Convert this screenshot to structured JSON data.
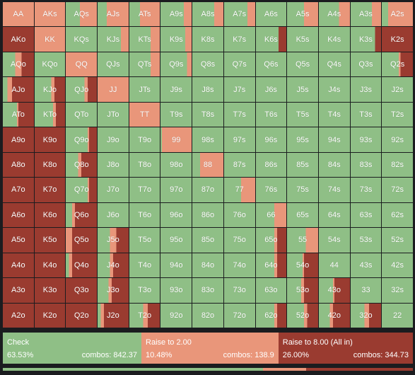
{
  "colors": {
    "check": "#8fbf86",
    "raise_small": "#e9967a",
    "raise_allin": "#9a3b30"
  },
  "grid": {
    "rows": [
      [
        "AA",
        "AKs",
        "AQs",
        "AJs",
        "ATs",
        "A9s",
        "A8s",
        "A7s",
        "A6s",
        "A5s",
        "A4s",
        "A3s",
        "A2s"
      ],
      [
        "AKo",
        "KK",
        "KQs",
        "KJs",
        "KTs",
        "K9s",
        "K8s",
        "K7s",
        "K6s",
        "K5s",
        "K4s",
        "K3s",
        "K2s"
      ],
      [
        "AQo",
        "KQo",
        "QQ",
        "QJs",
        "QTs",
        "Q9s",
        "Q8s",
        "Q7s",
        "Q6s",
        "Q5s",
        "Q4s",
        "Q3s",
        "Q2s"
      ],
      [
        "AJo",
        "KJo",
        "QJo",
        "JJ",
        "JTs",
        "J9s",
        "J8s",
        "J7s",
        "J6s",
        "J5s",
        "J4s",
        "J3s",
        "J2s"
      ],
      [
        "ATo",
        "KTo",
        "QTo",
        "JTo",
        "TT",
        "T9s",
        "T8s",
        "T7s",
        "T6s",
        "T5s",
        "T4s",
        "T3s",
        "T2s"
      ],
      [
        "A9o",
        "K9o",
        "Q9o",
        "J9o",
        "T9o",
        "99",
        "98s",
        "97s",
        "96s",
        "95s",
        "94s",
        "93s",
        "92s"
      ],
      [
        "A8o",
        "K8o",
        "Q8o",
        "J8o",
        "T8o",
        "98o",
        "88",
        "87s",
        "86s",
        "85s",
        "84s",
        "83s",
        "82s"
      ],
      [
        "A7o",
        "K7o",
        "Q7o",
        "J7o",
        "T7o",
        "97o",
        "87o",
        "77",
        "76s",
        "75s",
        "74s",
        "73s",
        "72s"
      ],
      [
        "A6o",
        "K6o",
        "Q6o",
        "J6o",
        "T6o",
        "96o",
        "86o",
        "76o",
        "66",
        "65s",
        "64s",
        "63s",
        "62s"
      ],
      [
        "A5o",
        "K5o",
        "Q5o",
        "J5o",
        "T5o",
        "95o",
        "85o",
        "75o",
        "65o",
        "55",
        "54s",
        "53s",
        "52s"
      ],
      [
        "A4o",
        "K4o",
        "Q4o",
        "J4o",
        "T4o",
        "94o",
        "84o",
        "74o",
        "64o",
        "54o",
        "44",
        "43s",
        "42s"
      ],
      [
        "A3o",
        "K3o",
        "Q3o",
        "J3o",
        "T3o",
        "93o",
        "83o",
        "73o",
        "63o",
        "53o",
        "43o",
        "33",
        "32s"
      ],
      [
        "A2o",
        "K2o",
        "Q2o",
        "J2o",
        "T2o",
        "92o",
        "82o",
        "72o",
        "62o",
        "52o",
        "42o",
        "32o",
        "22"
      ]
    ],
    "freqs": [
      [
        [
          0,
          100,
          0
        ],
        [
          0,
          100,
          0
        ],
        [
          45,
          55,
          0
        ],
        [
          30,
          70,
          0
        ],
        [
          35,
          65,
          0
        ],
        [
          75,
          25,
          0
        ],
        [
          70,
          30,
          0
        ],
        [
          75,
          25,
          0
        ],
        [
          100,
          0,
          0
        ],
        [
          55,
          45,
          0
        ],
        [
          65,
          35,
          0
        ],
        [
          70,
          30,
          0
        ],
        [
          20,
          80,
          0
        ]
      ],
      [
        [
          0,
          0,
          100
        ],
        [
          0,
          100,
          0
        ],
        [
          100,
          0,
          0
        ],
        [
          75,
          25,
          0
        ],
        [
          70,
          30,
          0
        ],
        [
          80,
          20,
          0
        ],
        [
          100,
          0,
          0
        ],
        [
          100,
          0,
          0
        ],
        [
          75,
          0,
          25
        ],
        [
          100,
          0,
          0
        ],
        [
          100,
          0,
          0
        ],
        [
          80,
          0,
          20
        ],
        [
          0,
          0,
          100
        ]
      ],
      [
        [
          40,
          20,
          40
        ],
        [
          100,
          0,
          0
        ],
        [
          0,
          100,
          0
        ],
        [
          100,
          0,
          0
        ],
        [
          70,
          30,
          0
        ],
        [
          85,
          15,
          0
        ],
        [
          100,
          0,
          0
        ],
        [
          100,
          0,
          0
        ],
        [
          100,
          0,
          0
        ],
        [
          100,
          0,
          0
        ],
        [
          100,
          0,
          0
        ],
        [
          100,
          0,
          0
        ],
        [
          55,
          5,
          40
        ]
      ],
      [
        [
          15,
          15,
          70
        ],
        [
          55,
          10,
          35
        ],
        [
          60,
          10,
          30
        ],
        [
          0,
          100,
          0
        ],
        [
          100,
          0,
          0
        ],
        [
          100,
          0,
          0
        ],
        [
          100,
          0,
          0
        ],
        [
          100,
          0,
          0
        ],
        [
          100,
          0,
          0
        ],
        [
          100,
          0,
          0
        ],
        [
          100,
          0,
          0
        ],
        [
          100,
          0,
          0
        ],
        [
          100,
          0,
          0
        ]
      ],
      [
        [
          45,
          5,
          50
        ],
        [
          60,
          10,
          30
        ],
        [
          100,
          0,
          0
        ],
        [
          100,
          0,
          0
        ],
        [
          0,
          100,
          0
        ],
        [
          100,
          0,
          0
        ],
        [
          100,
          0,
          0
        ],
        [
          100,
          0,
          0
        ],
        [
          100,
          0,
          0
        ],
        [
          100,
          0,
          0
        ],
        [
          100,
          0,
          0
        ],
        [
          100,
          0,
          0
        ],
        [
          100,
          0,
          0
        ]
      ],
      [
        [
          0,
          0,
          100
        ],
        [
          0,
          0,
          100
        ],
        [
          70,
          5,
          25
        ],
        [
          100,
          0,
          0
        ],
        [
          100,
          0,
          0
        ],
        [
          5,
          95,
          0
        ],
        [
          100,
          0,
          0
        ],
        [
          100,
          0,
          0
        ],
        [
          100,
          0,
          0
        ],
        [
          100,
          0,
          0
        ],
        [
          100,
          0,
          0
        ],
        [
          100,
          0,
          0
        ],
        [
          100,
          0,
          0
        ]
      ],
      [
        [
          0,
          0,
          100
        ],
        [
          0,
          0,
          100
        ],
        [
          40,
          10,
          50
        ],
        [
          100,
          0,
          0
        ],
        [
          100,
          0,
          0
        ],
        [
          100,
          0,
          0
        ],
        [
          25,
          75,
          0
        ],
        [
          100,
          0,
          0
        ],
        [
          100,
          0,
          0
        ],
        [
          100,
          0,
          0
        ],
        [
          100,
          0,
          0
        ],
        [
          100,
          0,
          0
        ],
        [
          100,
          0,
          0
        ]
      ],
      [
        [
          0,
          0,
          100
        ],
        [
          0,
          0,
          100
        ],
        [
          70,
          5,
          25
        ],
        [
          100,
          0,
          0
        ],
        [
          100,
          0,
          0
        ],
        [
          100,
          0,
          0
        ],
        [
          100,
          0,
          0
        ],
        [
          55,
          45,
          0
        ],
        [
          100,
          0,
          0
        ],
        [
          100,
          0,
          0
        ],
        [
          100,
          0,
          0
        ],
        [
          100,
          0,
          0
        ],
        [
          100,
          0,
          0
        ]
      ],
      [
        [
          0,
          0,
          100
        ],
        [
          0,
          0,
          100
        ],
        [
          20,
          10,
          70
        ],
        [
          100,
          0,
          0
        ],
        [
          100,
          0,
          0
        ],
        [
          100,
          0,
          0
        ],
        [
          100,
          0,
          0
        ],
        [
          100,
          0,
          0
        ],
        [
          60,
          40,
          0
        ],
        [
          100,
          0,
          0
        ],
        [
          100,
          0,
          0
        ],
        [
          100,
          0,
          0
        ],
        [
          100,
          0,
          0
        ]
      ],
      [
        [
          0,
          0,
          100
        ],
        [
          0,
          0,
          100
        ],
        [
          0,
          20,
          80
        ],
        [
          40,
          20,
          40
        ],
        [
          100,
          0,
          0
        ],
        [
          100,
          0,
          0
        ],
        [
          100,
          0,
          0
        ],
        [
          100,
          0,
          0
        ],
        [
          60,
          10,
          30
        ],
        [
          60,
          40,
          0
        ],
        [
          100,
          0,
          0
        ],
        [
          100,
          0,
          0
        ],
        [
          100,
          0,
          0
        ]
      ],
      [
        [
          0,
          0,
          100
        ],
        [
          0,
          0,
          100
        ],
        [
          10,
          10,
          80
        ],
        [
          40,
          10,
          50
        ],
        [
          100,
          0,
          0
        ],
        [
          100,
          0,
          0
        ],
        [
          100,
          0,
          0
        ],
        [
          100,
          0,
          0
        ],
        [
          60,
          10,
          30
        ],
        [
          50,
          5,
          45
        ],
        [
          100,
          0,
          0
        ],
        [
          100,
          0,
          0
        ],
        [
          100,
          0,
          0
        ]
      ],
      [
        [
          0,
          0,
          100
        ],
        [
          0,
          0,
          100
        ],
        [
          0,
          0,
          100
        ],
        [
          35,
          10,
          55
        ],
        [
          100,
          0,
          0
        ],
        [
          100,
          0,
          0
        ],
        [
          100,
          0,
          0
        ],
        [
          100,
          0,
          0
        ],
        [
          100,
          0,
          0
        ],
        [
          45,
          10,
          45
        ],
        [
          45,
          5,
          50
        ],
        [
          100,
          0,
          0
        ],
        [
          100,
          0,
          0
        ]
      ],
      [
        [
          0,
          0,
          100
        ],
        [
          0,
          0,
          100
        ],
        [
          0,
          0,
          100
        ],
        [
          10,
          10,
          80
        ],
        [
          45,
          15,
          40
        ],
        [
          100,
          0,
          0
        ],
        [
          100,
          0,
          0
        ],
        [
          100,
          0,
          0
        ],
        [
          60,
          10,
          30
        ],
        [
          55,
          10,
          35
        ],
        [
          35,
          10,
          55
        ],
        [
          45,
          15,
          40
        ],
        [
          100,
          0,
          0
        ]
      ]
    ]
  },
  "actions": [
    {
      "name": "Check",
      "pct": "63.53%",
      "combos": "combos: 842.37",
      "color": "#8fbf86",
      "width_pct": 33.8
    },
    {
      "name": "Raise to 2.00",
      "pct": "10.48%",
      "combos": "combos: 138.9",
      "color": "#e9967a",
      "width_pct": 33.4
    },
    {
      "name": "Raise to 8.00 (All in)",
      "pct": "26.00%",
      "combos": "combos: 344.73",
      "color": "#9a3b30",
      "width_pct": 32.8
    }
  ],
  "freq_bar": [
    {
      "color": "#8fbf86",
      "value": 63.53
    },
    {
      "color": "#e9967a",
      "value": 10.48
    },
    {
      "color": "#9a3b30",
      "value": 26.0
    }
  ]
}
